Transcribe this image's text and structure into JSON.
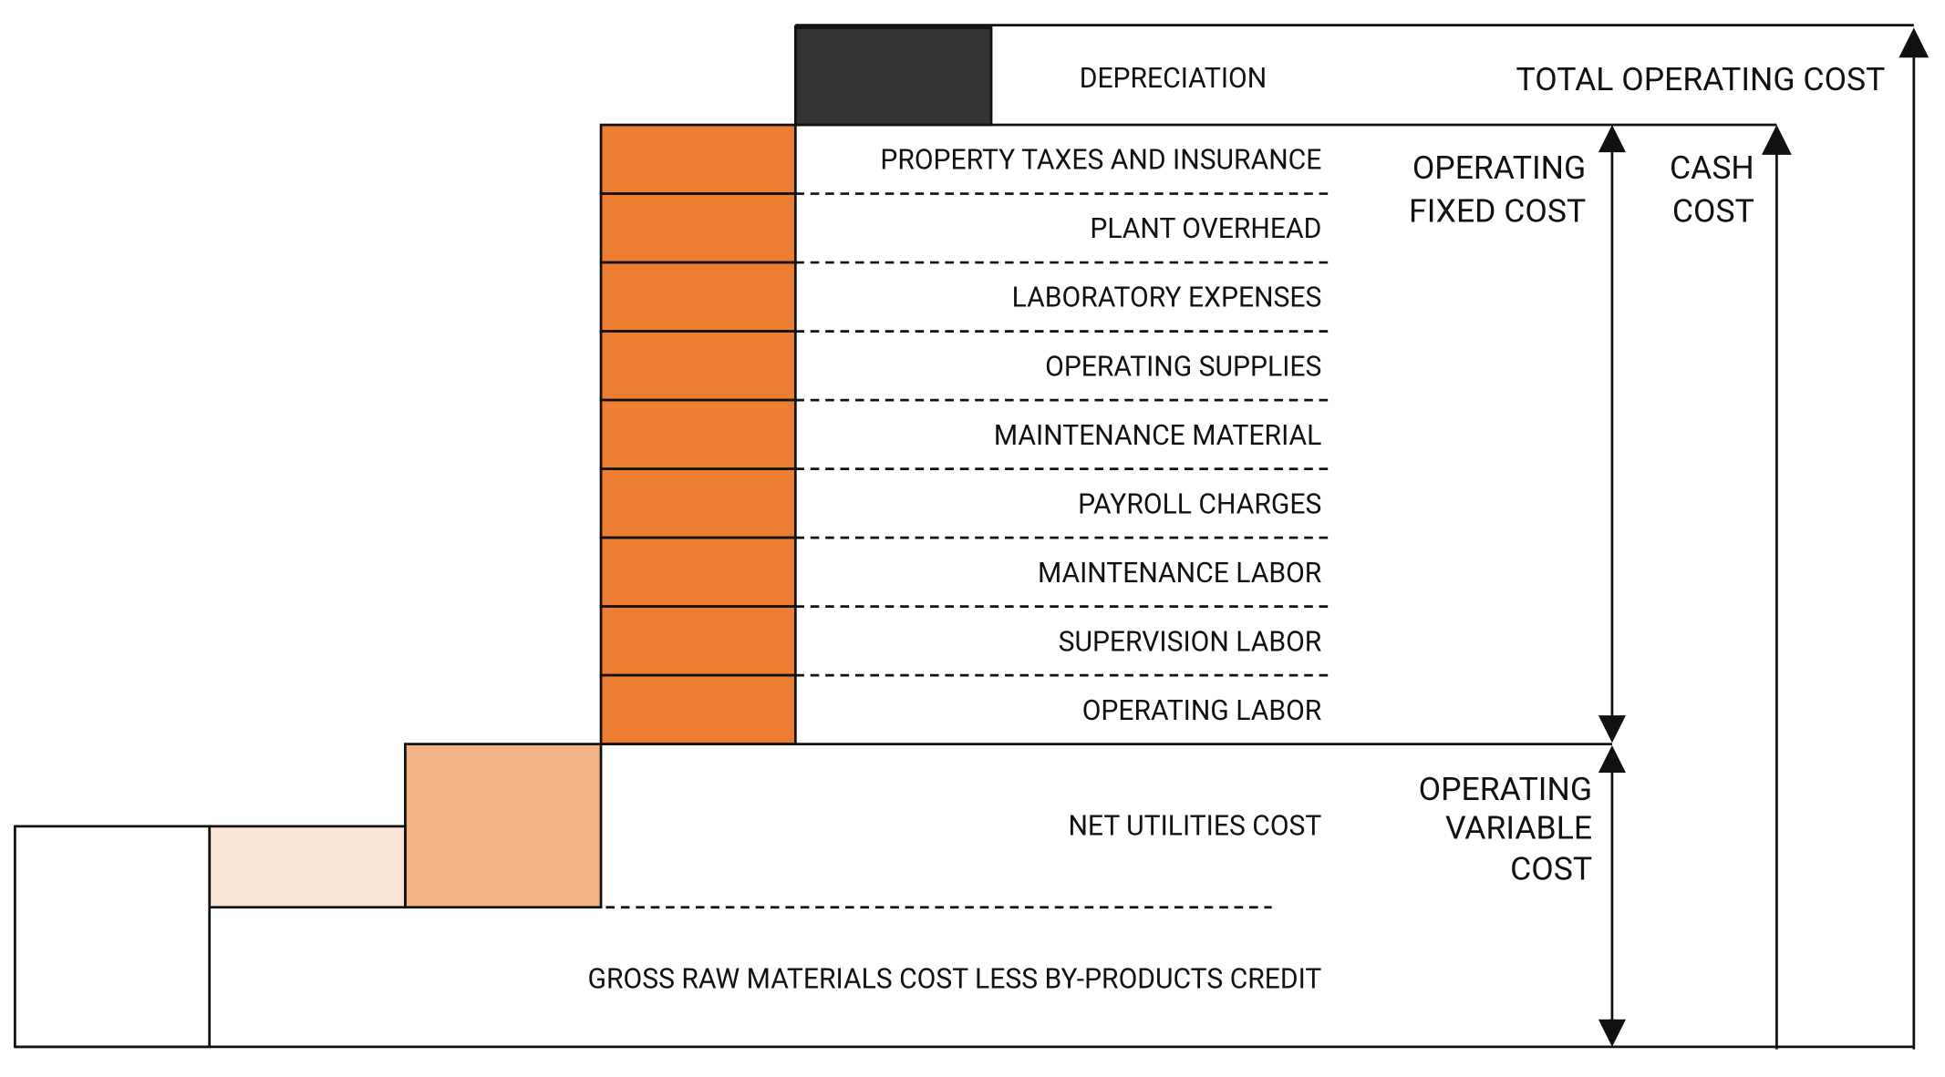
{
  "depreciation": "DEPRECIATION",
  "fixed_items": [
    "PROPERTY TAXES AND INSURANCE",
    "PLANT OVERHEAD",
    "LABORATORY EXPENSES",
    "OPERATING SUPPLIES",
    "MAINTENANCE MATERIAL",
    "PAYROLL CHARGES",
    "MAINTENANCE LABOR",
    "SUPERVISION LABOR",
    "OPERATING LABOR"
  ],
  "net_utilities": "NET UTILITIES COST",
  "raw_materials": "GROSS RAW MATERIALS COST LESS BY-PRODUCTS CREDIT",
  "total_operating_cost": "TOTAL OPERATING COST",
  "operating_fixed_cost": [
    "OPERATING",
    "FIXED COST"
  ],
  "cash_cost": [
    "CASH",
    "COST"
  ],
  "operating_variable_cost": [
    "OPERATING",
    "VARIABLE",
    "COST"
  ]
}
